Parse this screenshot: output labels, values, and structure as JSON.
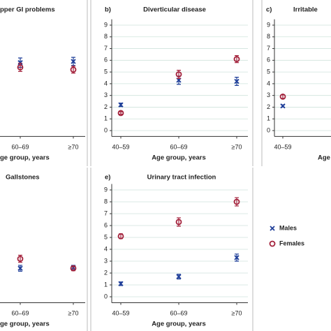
{
  "chart_data": [
    {
      "type": "point",
      "title": "pper GI problems",
      "x_label": "ge group, years",
      "categories": [
        null,
        "60–69",
        "≥70"
      ],
      "ylim": [
        -0.5,
        9.5
      ],
      "series": [
        {
          "name": "Males",
          "color": "#1f3f99",
          "marker": "x",
          "values": [
            null,
            5.8,
            5.9
          ],
          "errors": [
            null,
            0.4,
            0.35
          ]
        },
        {
          "name": "Females",
          "color": "#a3213b",
          "marker": "o",
          "values": [
            null,
            5.4,
            5.2
          ],
          "errors": [
            null,
            0.35,
            0.3
          ]
        }
      ]
    },
    {
      "type": "point",
      "panel": "b)",
      "title": "Diverticular disease",
      "x_label": "Age group, years",
      "categories": [
        "40–59",
        "60–69",
        "≥70"
      ],
      "ylim": [
        -0.5,
        9.5
      ],
      "yticks": [
        0,
        1,
        2,
        3,
        4,
        5,
        6,
        7,
        8,
        9
      ],
      "grid": true,
      "series": [
        {
          "name": "Males",
          "color": "#1f3f99",
          "marker": "x",
          "values": [
            2.2,
            4.3,
            4.2
          ],
          "errors": [
            0.15,
            0.35,
            0.35
          ]
        },
        {
          "name": "Females",
          "color": "#a3213b",
          "marker": "o",
          "values": [
            1.5,
            4.8,
            6.1
          ],
          "errors": [
            0.1,
            0.35,
            0.3
          ]
        }
      ]
    },
    {
      "type": "point",
      "panel": "c)",
      "title": "Irritable",
      "x_label": "Age",
      "categories": [
        "40–59",
        null,
        null
      ],
      "ylim": [
        -0.5,
        9.5
      ],
      "yticks": [
        0,
        1,
        2,
        3,
        4,
        5,
        6,
        7,
        8,
        9
      ],
      "grid": true,
      "series": [
        {
          "name": "Males",
          "color": "#1f3f99",
          "marker": "x",
          "values": [
            2.1,
            null,
            null
          ],
          "errors": [
            0.1,
            null,
            null
          ]
        },
        {
          "name": "Females",
          "color": "#a3213b",
          "marker": "o",
          "values": [
            2.9,
            null,
            null
          ],
          "errors": [
            0.15,
            null,
            null
          ]
        }
      ]
    },
    {
      "type": "point",
      "title": "Gallstones",
      "x_label": "ge group, years",
      "categories": [
        null,
        "60–69",
        "≥70"
      ],
      "ylim": [
        -0.5,
        9.5
      ],
      "series": [
        {
          "name": "Males",
          "color": "#1f3f99",
          "marker": "x",
          "values": [
            null,
            2.4,
            2.45
          ],
          "errors": [
            null,
            0.25,
            0.2
          ]
        },
        {
          "name": "Females",
          "color": "#a3213b",
          "marker": "o",
          "values": [
            null,
            3.2,
            2.4
          ],
          "errors": [
            null,
            0.3,
            0.2
          ]
        }
      ]
    },
    {
      "type": "point",
      "panel": "e)",
      "title": "Urinary tract infection",
      "x_label": "Age group, years",
      "categories": [
        "40–59",
        "60–69",
        "≥70"
      ],
      "ylim": [
        -0.5,
        9.5
      ],
      "yticks": [
        0,
        1,
        2,
        3,
        4,
        5,
        6,
        7,
        8,
        9
      ],
      "grid": true,
      "legend": "right",
      "series": [
        {
          "name": "Males",
          "color": "#1f3f99",
          "marker": "x",
          "values": [
            1.1,
            1.7,
            3.3
          ],
          "errors": [
            0.15,
            0.2,
            0.3
          ]
        },
        {
          "name": "Females",
          "color": "#a3213b",
          "marker": "o",
          "values": [
            5.1,
            6.3,
            8.0
          ],
          "errors": [
            0.2,
            0.35,
            0.35
          ]
        }
      ]
    }
  ]
}
